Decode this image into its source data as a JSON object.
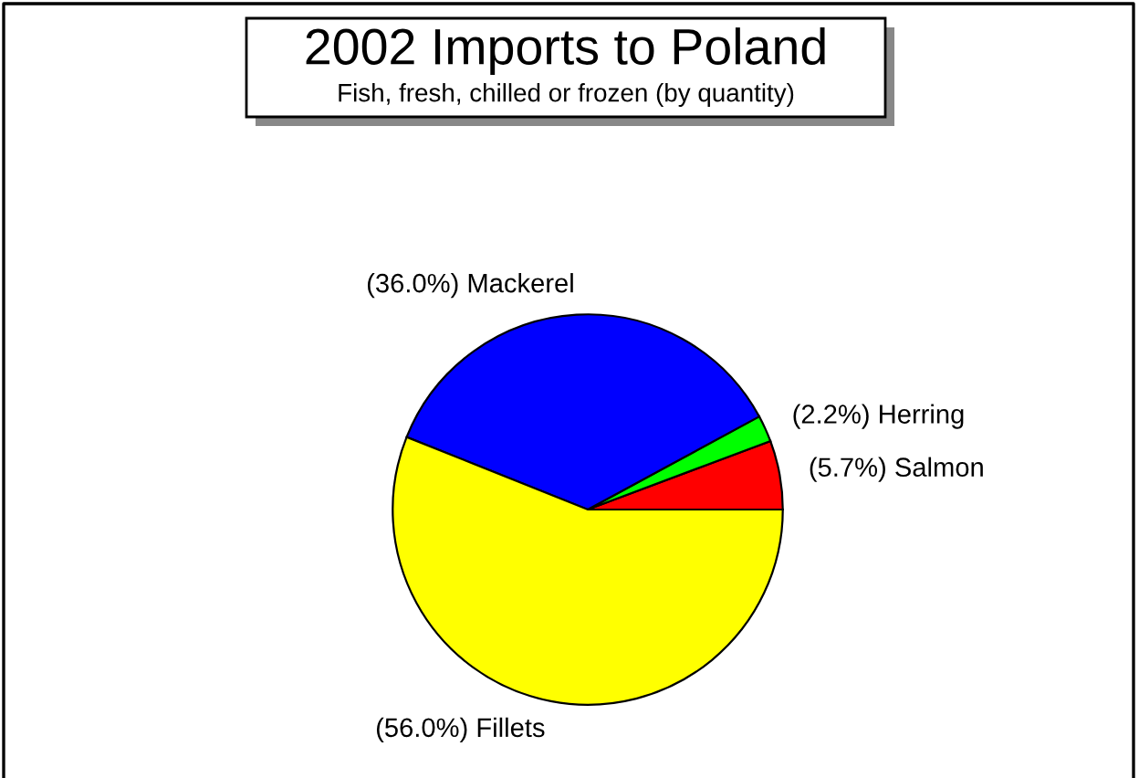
{
  "chart_data": {
    "type": "pie",
    "title": "2002 Imports to Poland",
    "subtitle": "Fish, fresh, chilled or frozen (by quantity)",
    "categories": [
      "Salmon",
      "Herring",
      "Mackerel",
      "Fillets"
    ],
    "values": [
      5.7,
      2.2,
      36.0,
      56.0
    ],
    "value_labels": [
      "(5.7%)",
      "(2.2%)",
      "(36.0%)",
      "(56.0%)"
    ],
    "colors": [
      "#ff0000",
      "#00ff00",
      "#0000ff",
      "#ffff00"
    ],
    "legend": false
  }
}
